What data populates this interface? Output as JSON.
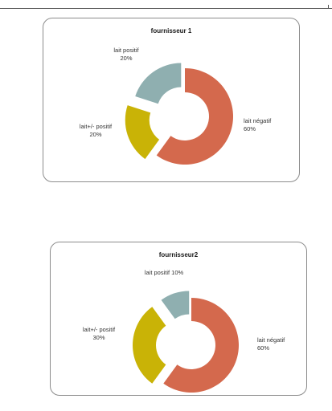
{
  "chart_data": [
    {
      "type": "pie",
      "subtype": "exploded-doughnut",
      "title": "fournisseur 1",
      "slices": [
        {
          "label": "lait négatif",
          "percent": "60%",
          "value": 60,
          "color": "#d4694d"
        },
        {
          "label": "lait+/- positif",
          "percent": "20%",
          "value": 20,
          "color": "#c9b306"
        },
        {
          "label": "lait positif",
          "percent": "20%",
          "value": 20,
          "color": "#8fafb0"
        }
      ]
    },
    {
      "type": "pie",
      "subtype": "exploded-doughnut",
      "title": "fournisseur2",
      "slices": [
        {
          "label": "lait négatif",
          "percent": "60%",
          "value": 60,
          "color": "#d4694d"
        },
        {
          "label": "lait+/- positif",
          "percent": "30%",
          "value": 30,
          "color": "#c9b306"
        },
        {
          "label": "lait positif",
          "percent": "10%",
          "value": 10,
          "color": "#8fafb0"
        }
      ]
    }
  ]
}
